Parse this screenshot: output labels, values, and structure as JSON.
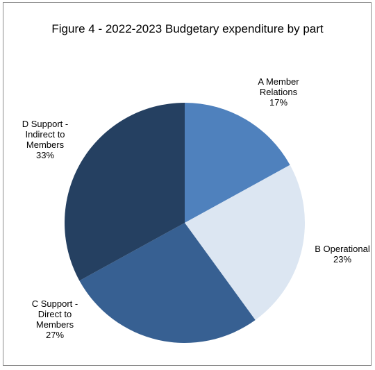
{
  "chart_data": {
    "type": "pie",
    "title": "Figure 4 - 2022-2023 Budgetary expenditure by part",
    "categories": [
      "A Member Relations",
      "B Operational",
      "C Support - Direct to Members",
      "D Support - Indirect to Members"
    ],
    "values": [
      17,
      23,
      27,
      33
    ],
    "label_lines": [
      [
        "A Member",
        "Relations",
        "17%"
      ],
      [
        "B Operational",
        "23%"
      ],
      [
        "C Support -",
        "Direct to",
        "Members",
        "27%"
      ],
      [
        "D Support -",
        "Indirect to",
        "Members",
        "33%"
      ]
    ],
    "colors": [
      "#4f81bd",
      "#dce6f2",
      "#376092",
      "#254061"
    ],
    "legend": "none",
    "start_angle": "12 o'clock",
    "direction": "clockwise"
  }
}
